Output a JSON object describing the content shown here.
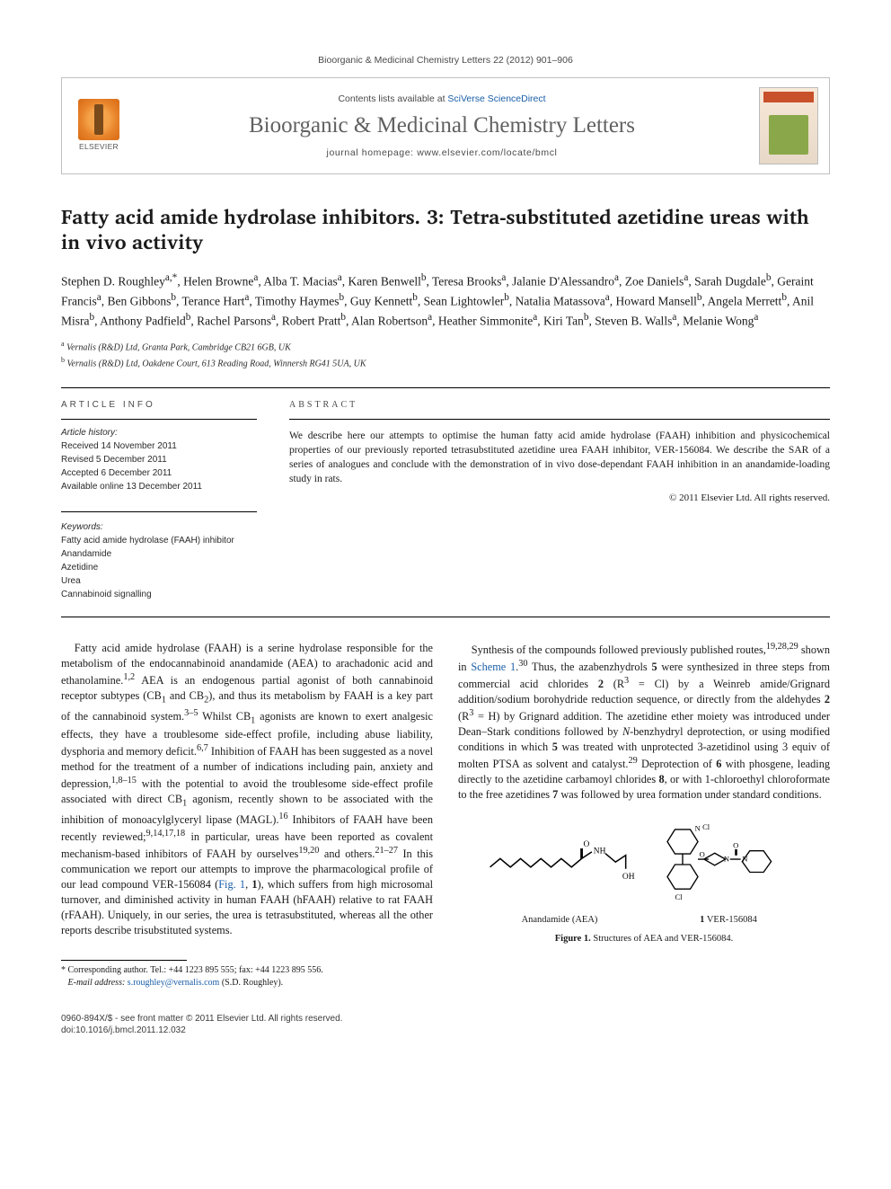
{
  "citation": "Bioorganic & Medicinal Chemistry Letters 22 (2012) 901–906",
  "masthead": {
    "publisher": "ELSEVIER",
    "contents_prefix": "Contents lists available at ",
    "contents_link": "SciVerse ScienceDirect",
    "journal": "Bioorganic & Medicinal Chemistry Letters",
    "homepage_prefix": "journal homepage: ",
    "homepage_url": "www.elsevier.com/locate/bmcl"
  },
  "article": {
    "title": "Fatty acid amide hydrolase inhibitors. 3: Tetra-substituted azetidine ureas with in vivo activity",
    "authors_html": "Stephen D. Roughley<sup>a,*</sup>, Helen Browne<sup>a</sup>, Alba T. Macias<sup>a</sup>, Karen Benwell<sup>b</sup>, Teresa Brooks<sup>a</sup>, Jalanie D'Alessandro<sup>a</sup>, Zoe Daniels<sup>a</sup>, Sarah Dugdale<sup>b</sup>, Geraint Francis<sup>a</sup>, Ben Gibbons<sup>b</sup>, Terance Hart<sup>a</sup>, Timothy Haymes<sup>b</sup>, Guy Kennett<sup>b</sup>, Sean Lightowler<sup>b</sup>, Natalia Matassova<sup>a</sup>, Howard Mansell<sup>b</sup>, Angela Merrett<sup>b</sup>, Anil Misra<sup>b</sup>, Anthony Padfield<sup>b</sup>, Rachel Parsons<sup>a</sup>, Robert Pratt<sup>b</sup>, Alan Robertson<sup>a</sup>, Heather Simmonite<sup>a</sup>, Kiri Tan<sup>b</sup>, Steven B. Walls<sup>a</sup>, Melanie Wong<sup>a</sup>",
    "affiliations": [
      {
        "mark": "a",
        "text": "Vernalis (R&D) Ltd, Granta Park, Cambridge CB21 6GB, UK"
      },
      {
        "mark": "b",
        "text": "Vernalis (R&D) Ltd, Oakdene Court, 613 Reading Road, Winnersh RG41 5UA, UK"
      }
    ]
  },
  "info": {
    "heading": "ARTICLE INFO",
    "history_label": "Article history:",
    "history": [
      "Received 14 November 2011",
      "Revised 5 December 2011",
      "Accepted 6 December 2011",
      "Available online 13 December 2011"
    ],
    "keywords_label": "Keywords:",
    "keywords": [
      "Fatty acid amide hydrolase (FAAH) inhibitor",
      "Anandamide",
      "Azetidine",
      "Urea",
      "Cannabinoid signalling"
    ]
  },
  "abstract": {
    "heading": "ABSTRACT",
    "text": "We describe here our attempts to optimise the human fatty acid amide hydrolase (FAAH) inhibition and physicochemical properties of our previously reported tetrasubstituted azetidine urea FAAH inhibitor, VER-156084. We describe the SAR of a series of analogues and conclude with the demonstration of in vivo dose-dependant FAAH inhibition in an anandamide-loading study in rats.",
    "copyright": "© 2011 Elsevier Ltd. All rights reserved."
  },
  "body": {
    "para1": "Fatty acid amide hydrolase (FAAH) is a serine hydrolase responsible for the metabolism of the endocannabinoid anandamide (AEA) to arachadonic acid and ethanolamine.<sup>1,2</sup> AEA is an endogenous partial agonist of both cannabinoid receptor subtypes (CB<sub>1</sub> and CB<sub>2</sub>), and thus its metabolism by FAAH is a key part of the cannabinoid system.<sup>3–5</sup> Whilst CB<sub>1</sub> agonists are known to exert analgesic effects, they have a troublesome side-effect profile, including abuse liability, dysphoria and memory deficit.<sup>6,7</sup> Inhibition of FAAH has been suggested as a novel method for the treatment of a number of indications including pain, anxiety and depression,<sup>1,8–15</sup> with the potential to avoid the troublesome side-effect profile associated with direct CB<sub>1</sub> agonism, recently shown to be associated with the inhibition of monoacylglyceryl lipase (MAGL).<sup>16</sup> Inhibitors of FAAH have been recently reviewed;<sup>9,14,17,18</sup> in particular, ureas have been reported as covalent mechanism-based inhibitors of FAAH by ourselves<sup>19,20</sup> and others.<sup>21–27</sup> In this communication we report our attempts to improve the pharmacological profile of our lead compound VER-156084 (<a class='ref'>Fig. 1</a>, <b>1</b>), which suffers from high microsomal turnover, and diminished activity in human FAAH (hFAAH) relative to rat FAAH (rFAAH). Uniquely, in our series, the urea is tetrasubstituted, whereas all the other reports describe trisubstituted systems.",
    "para2": "Synthesis of the compounds followed previously published routes,<sup>19,28,29</sup> shown in <a class='ref'>Scheme 1</a>.<sup>30</sup> Thus, the azabenzhydrols <b>5</b> were synthesized in three steps from commercial acid chlorides <b>2</b> (R<sup>3</sup> = Cl) by a Weinreb amide/Grignard addition/sodium borohydride reduction sequence, or directly from the aldehydes <b>2</b> (R<sup>3</sup> = H) by Grignard addition. The azetidine ether moiety was introduced under Dean–Stark conditions followed by <i>N</i>-benzhydryl deprotection, or using modified conditions in which <b>5</b> was treated with unprotected 3-azetidinol using 3 equiv of molten PTSA as solvent and catalyst.<sup>29</sup> Deprotection of <b>6</b> with phosgene, leading directly to the azetidine carbamoyl chlorides <b>8</b>, or with 1-chloroethyl chloroformate to the free azetidines <b>7</b> was followed by urea formation under standard conditions."
  },
  "figure1": {
    "aea_label": "Anandamide (AEA)",
    "ver_label": "1 VER-156084",
    "caption_bold": "Figure 1.",
    "caption_rest": " Structures of AEA and VER-156084."
  },
  "corresponding": {
    "mark": "*",
    "line1": "Corresponding author. Tel.: +44 1223 895 555; fax: +44 1223 895 556.",
    "email_label": "E-mail address: ",
    "email": "s.roughley@vernalis.com",
    "email_suffix": " (S.D. Roughley)."
  },
  "footer": {
    "left1": "0960-894X/$ - see front matter © 2011 Elsevier Ltd. All rights reserved.",
    "left2": "doi:10.1016/j.bmcl.2011.12.032"
  },
  "colors": {
    "link": "#1a5ea8",
    "text": "#1a1a1a",
    "mast_gray": "#616161"
  }
}
